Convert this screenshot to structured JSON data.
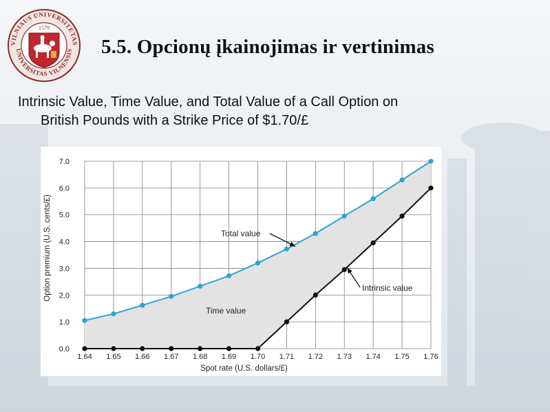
{
  "slide": {
    "title": "5.5. Opcionų įkainojimas ir vertinimas",
    "subtitle_line1": "Intrinsic Value, Time Value, and Total Value of a Call Option on",
    "subtitle_line2": "British Pounds with a Strike Price of $1.70/£"
  },
  "logo": {
    "ring_text_top": "VILNIAUS UNIVERSITETAS",
    "ring_text_bottom": "UNIVERSITAS VILNENSIS",
    "year": "1579",
    "colors": {
      "ring": "#8b2a2a",
      "shield": "#c0262d",
      "gold": "#d8b23a"
    }
  },
  "chart_data": {
    "type": "line",
    "xlabel": "Spot rate (U.S. dollars/£)",
    "ylabel": "Option premium (U.S. cents/£)",
    "xlim": [
      1.64,
      1.76
    ],
    "ylim": [
      0.0,
      7.0
    ],
    "x_ticks": [
      "1.64",
      "1.65",
      "1.66",
      "1.67",
      "1.68",
      "1.69",
      "1.70",
      "1.71",
      "1.72",
      "1.73",
      "1.74",
      "1.75",
      "1.76"
    ],
    "y_ticks": [
      "0.0",
      "1.0",
      "2.0",
      "3.0",
      "4.0",
      "5.0",
      "6.0",
      "7.0"
    ],
    "grid": true,
    "series": [
      {
        "name": "Total value",
        "color": "#2ea3d6",
        "x": [
          1.64,
          1.65,
          1.66,
          1.67,
          1.68,
          1.69,
          1.7,
          1.71,
          1.72,
          1.73,
          1.74,
          1.75,
          1.76
        ],
        "y": [
          1.05,
          1.3,
          1.62,
          1.95,
          2.33,
          2.72,
          3.2,
          3.72,
          4.3,
          4.95,
          5.6,
          6.3,
          7.0
        ]
      },
      {
        "name": "Intrinsic value",
        "color": "#111111",
        "x": [
          1.64,
          1.65,
          1.66,
          1.67,
          1.68,
          1.69,
          1.7,
          1.71,
          1.72,
          1.73,
          1.74,
          1.75,
          1.76
        ],
        "y": [
          0.0,
          0.0,
          0.0,
          0.0,
          0.0,
          0.0,
          0.0,
          1.0,
          2.0,
          2.95,
          3.95,
          4.95,
          6.0
        ]
      }
    ],
    "fill_between": {
      "label": "Time value",
      "color": "#e3e3e3"
    },
    "annotations": [
      {
        "text": "Total value",
        "target_series": "Total value"
      },
      {
        "text": "Intrinsic value",
        "target_series": "Intrinsic value"
      },
      {
        "text": "Time value"
      }
    ]
  }
}
